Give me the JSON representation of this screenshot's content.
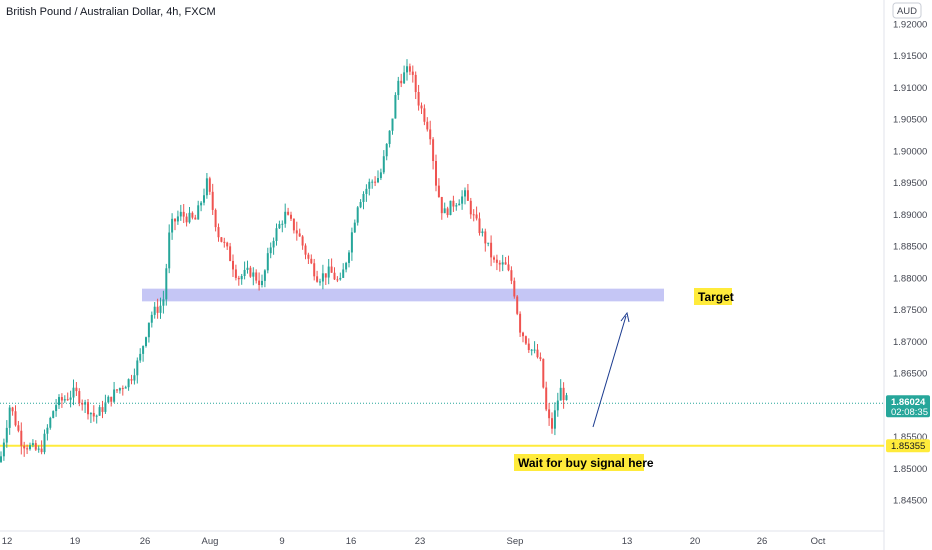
{
  "chart_data": {
    "type": "candlestick",
    "title": "British Pound / Australian Dollar, 4h, FXCM",
    "currency": "AUD",
    "y_ticks": [
      "1.92000",
      "1.91500",
      "1.91000",
      "1.90500",
      "1.90000",
      "1.89500",
      "1.89000",
      "1.88500",
      "1.88000",
      "1.87500",
      "1.87000",
      "1.86500",
      "1.86000",
      "1.85500",
      "1.85000",
      "1.84500"
    ],
    "ylim": [
      1.8415,
      1.924
    ],
    "x_ticks": [
      "12",
      "19",
      "26",
      "Aug",
      "9",
      "16",
      "23",
      "Sep",
      "13",
      "20",
      "26",
      "Oct"
    ],
    "last_price": "1.86024",
    "countdown": "02:08:35",
    "support_level": "1.85355",
    "target_zone": [
      1.8763,
      1.8783
    ],
    "annotations": {
      "target": "Target",
      "support_note": "Wait for buy signal here"
    },
    "colors": {
      "up": "#26a69a",
      "down": "#ef5350",
      "support": "#ffeb3b",
      "zone": "#c5c6f5",
      "arrow": "#1a3a8f",
      "price_label": "#26a69a"
    },
    "path_points": [
      [
        0,
        1.851
      ],
      [
        10,
        1.86
      ],
      [
        22,
        1.854
      ],
      [
        40,
        1.8525
      ],
      [
        55,
        1.86
      ],
      [
        75,
        1.862
      ],
      [
        95,
        1.858
      ],
      [
        115,
        1.862
      ],
      [
        130,
        1.864
      ],
      [
        140,
        1.8675
      ],
      [
        150,
        1.874
      ],
      [
        163,
        1.876
      ],
      [
        170,
        1.888
      ],
      [
        180,
        1.89
      ],
      [
        195,
        1.889
      ],
      [
        207,
        1.895
      ],
      [
        218,
        1.887
      ],
      [
        228,
        1.884
      ],
      [
        238,
        1.88
      ],
      [
        250,
        1.881
      ],
      [
        262,
        1.879
      ],
      [
        272,
        1.886
      ],
      [
        285,
        1.89
      ],
      [
        298,
        1.887
      ],
      [
        308,
        1.883
      ],
      [
        318,
        1.88
      ],
      [
        330,
        1.881
      ],
      [
        340,
        1.879
      ],
      [
        348,
        1.884
      ],
      [
        358,
        1.892
      ],
      [
        370,
        1.895
      ],
      [
        380,
        1.896
      ],
      [
        390,
        1.903
      ],
      [
        398,
        1.911
      ],
      [
        410,
        1.913
      ],
      [
        418,
        1.908
      ],
      [
        430,
        1.903
      ],
      [
        436,
        1.895
      ],
      [
        443,
        1.89
      ],
      [
        455,
        1.892
      ],
      [
        465,
        1.893
      ],
      [
        475,
        1.889
      ],
      [
        485,
        1.886
      ],
      [
        495,
        1.882
      ],
      [
        505,
        1.882
      ],
      [
        513,
        1.879
      ],
      [
        520,
        1.872
      ],
      [
        530,
        1.869
      ],
      [
        540,
        1.867
      ],
      [
        547,
        1.858
      ],
      [
        552,
        1.8565
      ],
      [
        560,
        1.8625
      ],
      [
        567,
        1.8605
      ]
    ]
  }
}
